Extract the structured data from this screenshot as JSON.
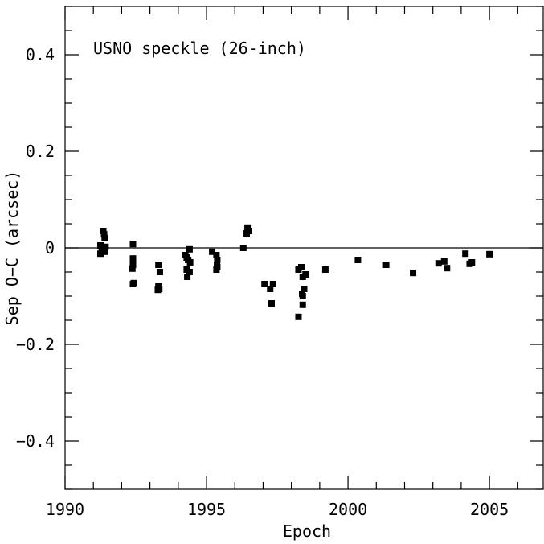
{
  "chart_data": {
    "type": "scatter",
    "annotation": "USNO speckle (26-inch)",
    "xlabel": "Epoch",
    "ylabel": "Sep O−C (arcsec)",
    "xlim": [
      1990,
      2006.9
    ],
    "ylim": [
      -0.5,
      0.5
    ],
    "x_ticks": [
      {
        "value": 1990,
        "label": "1990"
      },
      {
        "value": 1995,
        "label": "1995"
      },
      {
        "value": 2000,
        "label": "2000"
      },
      {
        "value": 2005,
        "label": "2005"
      }
    ],
    "y_ticks": [
      {
        "value": 0.4,
        "label": "0.4"
      },
      {
        "value": 0.2,
        "label": "0.2"
      },
      {
        "value": 0,
        "label": "0"
      },
      {
        "value": -0.2,
        "label": "−0.2"
      },
      {
        "value": -0.4,
        "label": "−0.4"
      }
    ],
    "reference_line": 0,
    "grid": false,
    "marker_color": "#000000",
    "points": [
      {
        "x": 1991.25,
        "y": 0.005
      },
      {
        "x": 1991.25,
        "y": -0.012
      },
      {
        "x": 1991.3,
        "y": 0.0
      },
      {
        "x": 1991.35,
        "y": 0.035
      },
      {
        "x": 1991.38,
        "y": 0.028
      },
      {
        "x": 1991.4,
        "y": 0.02
      },
      {
        "x": 1991.4,
        "y": -0.008
      },
      {
        "x": 1991.43,
        "y": 0.002
      },
      {
        "x": 1992.4,
        "y": 0.008
      },
      {
        "x": 1992.4,
        "y": -0.022
      },
      {
        "x": 1992.4,
        "y": -0.035
      },
      {
        "x": 1992.38,
        "y": -0.043
      },
      {
        "x": 1992.4,
        "y": -0.075
      },
      {
        "x": 1992.43,
        "y": -0.073
      },
      {
        "x": 1993.3,
        "y": -0.035
      },
      {
        "x": 1993.35,
        "y": -0.05
      },
      {
        "x": 1993.3,
        "y": -0.08
      },
      {
        "x": 1993.28,
        "y": -0.087
      },
      {
        "x": 1993.33,
        "y": -0.085
      },
      {
        "x": 1994.25,
        "y": -0.015
      },
      {
        "x": 1994.3,
        "y": -0.02
      },
      {
        "x": 1994.35,
        "y": -0.025
      },
      {
        "x": 1994.4,
        "y": -0.003
      },
      {
        "x": 1994.42,
        "y": -0.03
      },
      {
        "x": 1994.3,
        "y": -0.045
      },
      {
        "x": 1994.4,
        "y": -0.05
      },
      {
        "x": 1994.32,
        "y": -0.06
      },
      {
        "x": 1995.2,
        "y": -0.008
      },
      {
        "x": 1995.35,
        "y": -0.015
      },
      {
        "x": 1995.38,
        "y": -0.025
      },
      {
        "x": 1995.37,
        "y": -0.035
      },
      {
        "x": 1995.35,
        "y": -0.045
      },
      {
        "x": 1995.38,
        "y": -0.04
      },
      {
        "x": 1996.3,
        "y": 0.0
      },
      {
        "x": 1996.45,
        "y": 0.042
      },
      {
        "x": 1996.42,
        "y": 0.03
      },
      {
        "x": 1996.5,
        "y": 0.035
      },
      {
        "x": 1997.05,
        "y": -0.075
      },
      {
        "x": 1997.25,
        "y": -0.085
      },
      {
        "x": 1997.35,
        "y": -0.075
      },
      {
        "x": 1997.3,
        "y": -0.115
      },
      {
        "x": 1998.25,
        "y": -0.045
      },
      {
        "x": 1998.35,
        "y": -0.04
      },
      {
        "x": 1998.4,
        "y": -0.06
      },
      {
        "x": 1998.5,
        "y": -0.055
      },
      {
        "x": 1998.45,
        "y": -0.085
      },
      {
        "x": 1998.38,
        "y": -0.095
      },
      {
        "x": 1998.4,
        "y": -0.1
      },
      {
        "x": 1998.4,
        "y": -0.118
      },
      {
        "x": 1998.25,
        "y": -0.143
      },
      {
        "x": 1999.2,
        "y": -0.045
      },
      {
        "x": 2000.35,
        "y": -0.025
      },
      {
        "x": 2001.35,
        "y": -0.035
      },
      {
        "x": 2002.3,
        "y": -0.052
      },
      {
        "x": 2003.2,
        "y": -0.032
      },
      {
        "x": 2003.4,
        "y": -0.028
      },
      {
        "x": 2003.5,
        "y": -0.042
      },
      {
        "x": 2004.15,
        "y": -0.012
      },
      {
        "x": 2004.3,
        "y": -0.033
      },
      {
        "x": 2004.38,
        "y": -0.03
      },
      {
        "x": 2005.0,
        "y": -0.013
      }
    ]
  }
}
